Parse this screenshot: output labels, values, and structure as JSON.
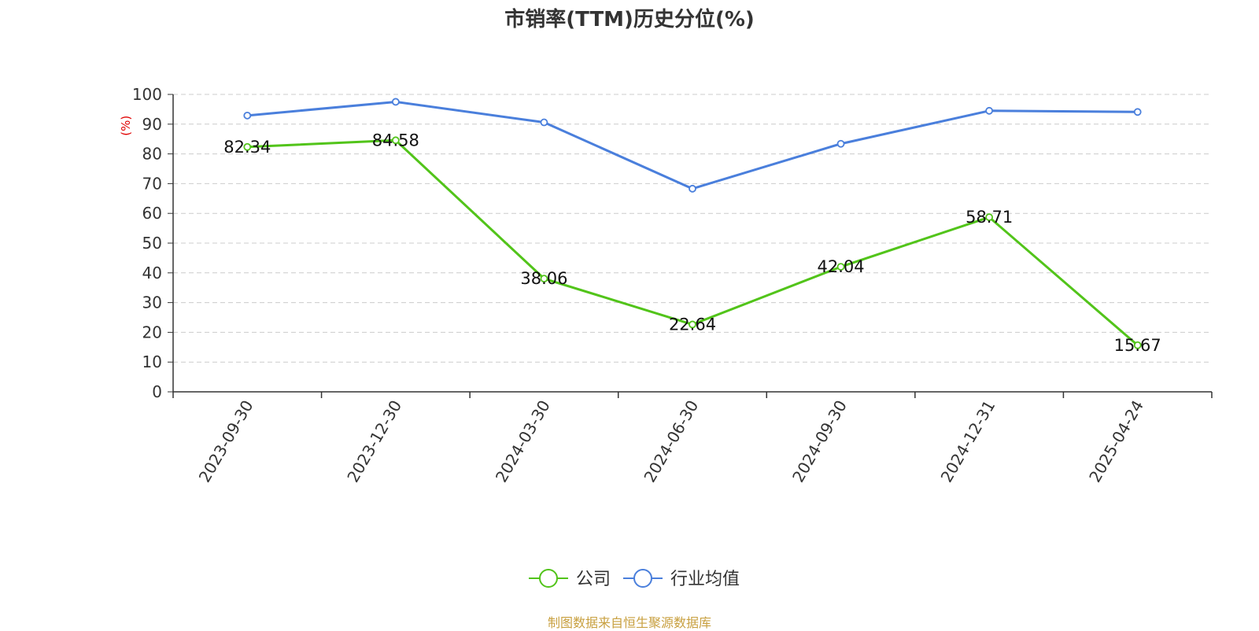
{
  "title": "市销率(TTM)历史分位(%)",
  "source": "制图数据来自恒生聚源数据库",
  "colors": {
    "company": "#52c41a",
    "industry": "#4a7fdc",
    "y_unit": "#e00000",
    "grid": "#cccccc",
    "axis": "#333333",
    "source": "#c8a040"
  },
  "chart_data": {
    "type": "line",
    "title": "市销率(TTM)历史分位(%)",
    "xlabel": "",
    "ylabel": "(%)",
    "ylim": [
      0,
      100
    ],
    "yticks": [
      0,
      10,
      20,
      30,
      40,
      50,
      60,
      70,
      80,
      90,
      100
    ],
    "grid": true,
    "legend_position": "bottom-center",
    "categories": [
      "2023-09-30",
      "2023-12-30",
      "2024-03-30",
      "2024-06-30",
      "2024-09-30",
      "2024-12-31",
      "2025-04-24"
    ],
    "series": [
      {
        "name": "公司",
        "key": "company",
        "values": [
          82.34,
          84.58,
          38.06,
          22.64,
          42.04,
          58.71,
          15.67
        ],
        "labels": [
          "82.34",
          "84.58",
          "38.06",
          "22.64",
          "42.04",
          "58.71",
          "15.67"
        ],
        "show_labels": true
      },
      {
        "name": "行业均值",
        "key": "industry",
        "values": [
          92.9,
          97.5,
          90.6,
          68.3,
          83.4,
          94.5,
          94.1
        ],
        "show_labels": false
      }
    ]
  }
}
